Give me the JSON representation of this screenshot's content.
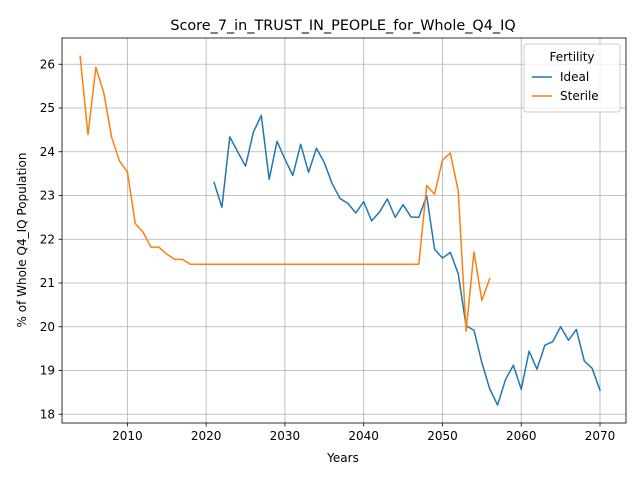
{
  "chart_data": {
    "type": "line",
    "title": "Score_7_in_TRUST_IN_PEOPLE_for_Whole_Q4_IQ",
    "xlabel": "Years",
    "ylabel": "% of Whole Q4_IQ Population",
    "xlim": [
      2001.7,
      2073.3
    ],
    "ylim": [
      17.8,
      26.6
    ],
    "x_ticks": [
      2010,
      2020,
      2030,
      2040,
      2050,
      2060,
      2070
    ],
    "y_ticks": [
      18,
      19,
      20,
      21,
      22,
      23,
      24,
      25,
      26
    ],
    "grid": true,
    "legend": {
      "title": "Fertility",
      "placement": "top-right"
    },
    "series": [
      {
        "name": "Ideal",
        "color": "#1f77b4",
        "x": [
          2021,
          2022,
          2023,
          2024,
          2025,
          2026,
          2027,
          2028,
          2029,
          2030,
          2031,
          2032,
          2033,
          2034,
          2035,
          2036,
          2037,
          2038,
          2039,
          2040,
          2041,
          2042,
          2043,
          2044,
          2045,
          2046,
          2047,
          2048,
          2049,
          2050,
          2051,
          2052,
          2053,
          2054,
          2055,
          2056,
          2057,
          2058,
          2059,
          2060,
          2061,
          2062,
          2063,
          2064,
          2065,
          2066,
          2067,
          2068,
          2069,
          2070
        ],
        "y": [
          23.3,
          22.73,
          24.34,
          24.0,
          23.67,
          24.45,
          24.83,
          23.37,
          24.24,
          23.83,
          23.46,
          24.17,
          23.53,
          24.08,
          23.75,
          23.27,
          22.93,
          22.82,
          22.6,
          22.86,
          22.42,
          22.62,
          22.92,
          22.5,
          22.79,
          22.51,
          22.5,
          22.99,
          21.77,
          21.57,
          21.7,
          21.21,
          20.02,
          19.92,
          19.18,
          18.58,
          18.21,
          18.79,
          19.12,
          18.57,
          19.44,
          19.03,
          19.58,
          19.66,
          20.0,
          19.69,
          19.94,
          19.22,
          19.05,
          18.55
        ]
      },
      {
        "name": "Sterile",
        "color": "#ff7f0e",
        "x": [
          2004,
          2005,
          2006,
          2007,
          2008,
          2009,
          2010,
          2011,
          2012,
          2013,
          2014,
          2015,
          2016,
          2017,
          2018,
          2019,
          2020,
          2021,
          2022,
          2023,
          2024,
          2025,
          2026,
          2027,
          2028,
          2029,
          2030,
          2031,
          2032,
          2033,
          2034,
          2035,
          2036,
          2037,
          2038,
          2039,
          2040,
          2041,
          2042,
          2043,
          2044,
          2045,
          2046,
          2047,
          2048,
          2049,
          2050,
          2051,
          2052,
          2053,
          2054,
          2055,
          2056
        ],
        "y": [
          26.18,
          24.39,
          25.93,
          25.35,
          24.33,
          23.79,
          23.54,
          22.36,
          22.16,
          21.82,
          21.82,
          21.66,
          21.54,
          21.54,
          21.43,
          21.43,
          21.43,
          21.43,
          21.43,
          21.43,
          21.43,
          21.43,
          21.43,
          21.43,
          21.43,
          21.43,
          21.43,
          21.43,
          21.43,
          21.43,
          21.43,
          21.43,
          21.43,
          21.43,
          21.43,
          21.43,
          21.43,
          21.43,
          21.43,
          21.43,
          21.43,
          21.43,
          21.43,
          21.43,
          23.23,
          23.03,
          23.81,
          23.97,
          23.11,
          19.9,
          21.71,
          20.6,
          21.1
        ]
      }
    ]
  }
}
